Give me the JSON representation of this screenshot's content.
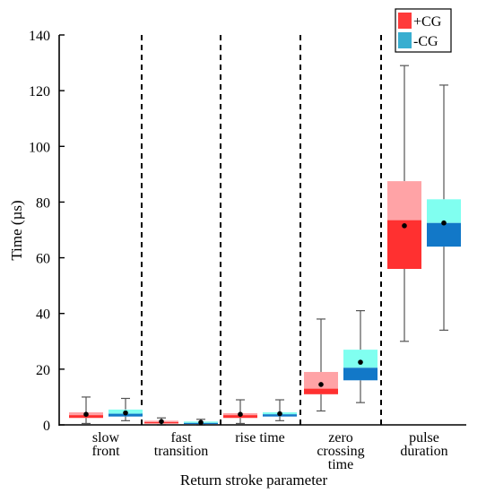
{
  "chart_data": {
    "type": "box",
    "title": "",
    "xlabel": "Return stroke parameter",
    "ylabel": "Time (µs)",
    "ylim": [
      0,
      140
    ],
    "yticks": [
      0,
      20,
      40,
      60,
      80,
      100,
      120,
      140
    ],
    "grid": false,
    "legend_position": "top-right",
    "categories": [
      {
        "id": "slow",
        "lines": [
          "slow",
          "front"
        ]
      },
      {
        "id": "fast",
        "lines": [
          "fast",
          "transition"
        ]
      },
      {
        "id": "rise",
        "lines": [
          "rise time"
        ]
      },
      {
        "id": "zero",
        "lines": [
          "zero",
          "crossing",
          "time"
        ]
      },
      {
        "id": "pulse",
        "lines": [
          "pulse",
          "duration"
        ]
      }
    ],
    "series": [
      {
        "name": "+CG",
        "legend_color": "#ff3b3b",
        "lower_color": "#ff3030",
        "upper_color": "#ffa3a6",
        "boxes": [
          {
            "whisker_low": 0.5,
            "q1": 2.5,
            "median": 3.5,
            "q3": 4.5,
            "whisker_high": 10,
            "mean": 3.8
          },
          {
            "whisker_low": 0,
            "q1": 0.5,
            "median": 1,
            "q3": 1.5,
            "whisker_high": 2.5,
            "mean": 1.2
          },
          {
            "whisker_low": 0.5,
            "q1": 2.5,
            "median": 3.5,
            "q3": 4.2,
            "whisker_high": 9,
            "mean": 3.8
          },
          {
            "whisker_low": 5,
            "q1": 11,
            "median": 13,
            "q3": 19,
            "whisker_high": 38,
            "mean": 14.5
          },
          {
            "whisker_low": 30,
            "q1": 56,
            "median": 73.5,
            "q3": 87.5,
            "whisker_high": 129,
            "mean": 71.5
          }
        ]
      },
      {
        "name": "-CG",
        "legend_color": "#38aed0",
        "lower_color": "#1278c8",
        "upper_color": "#80fff0",
        "boxes": [
          {
            "whisker_low": 1.5,
            "q1": 3,
            "median": 4,
            "q3": 5.5,
            "whisker_high": 9.5,
            "mean": 4.3
          },
          {
            "whisker_low": 0,
            "q1": 0.3,
            "median": 0.7,
            "q3": 1.2,
            "whisker_high": 2,
            "mean": 0.9
          },
          {
            "whisker_low": 1.5,
            "q1": 3,
            "median": 3.8,
            "q3": 4.5,
            "whisker_high": 9,
            "mean": 4
          },
          {
            "whisker_low": 8,
            "q1": 16,
            "median": 20.5,
            "q3": 27,
            "whisker_high": 41,
            "mean": 22.5
          },
          {
            "whisker_low": 34,
            "q1": 64,
            "median": 72.5,
            "q3": 81,
            "whisker_high": 122,
            "mean": 72.5
          }
        ]
      }
    ]
  }
}
